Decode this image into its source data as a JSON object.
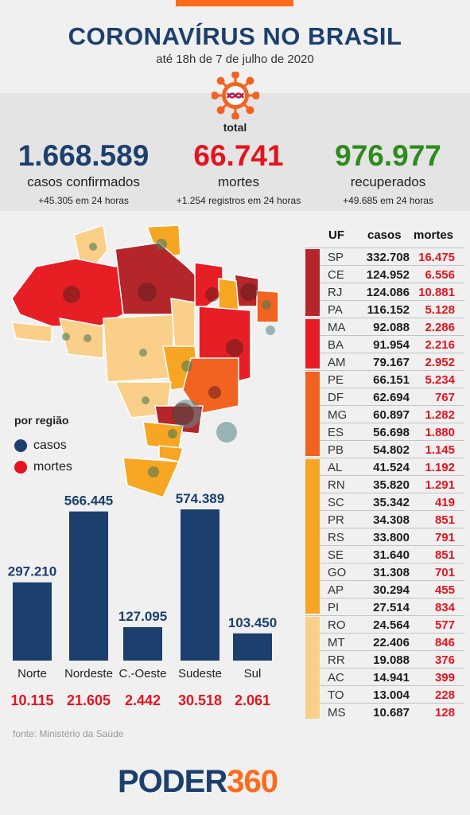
{
  "header": {
    "title": "CORONAVÍRUS NO BRASIL",
    "subtitle": "até 18h de 7 de julho de 2020",
    "total_label": "total"
  },
  "stats": [
    {
      "value": "1.668.589",
      "label": "casos confirmados",
      "sub": "+45.305 em 24 horas",
      "color": "#1c3f6e"
    },
    {
      "value": "66.741",
      "label": "mortes",
      "sub": "+1.254 registros em 24 horas",
      "color": "#e4141e"
    },
    {
      "value": "976.977",
      "label": "recuperados",
      "sub": "+49.685 em 24 horas",
      "color": "#2e8b1e"
    }
  ],
  "legend": {
    "title": "por região",
    "items": [
      {
        "label": "casos",
        "color": "#1c3f6e"
      },
      {
        "label": "mortes",
        "color": "#e4141e"
      }
    ]
  },
  "table": {
    "headers": {
      "uf": "UF",
      "casos": "casos",
      "mortes": "mortes"
    },
    "rows": [
      {
        "uf": "SP",
        "casos": "332.708",
        "mortes": "16.475"
      },
      {
        "uf": "CE",
        "casos": "124.952",
        "mortes": "6.556"
      },
      {
        "uf": "RJ",
        "casos": "124.086",
        "mortes": "10.881"
      },
      {
        "uf": "PA",
        "casos": "116.152",
        "mortes": "5.128"
      },
      {
        "uf": "MA",
        "casos": "92.088",
        "mortes": "2.286"
      },
      {
        "uf": "BA",
        "casos": "91.954",
        "mortes": "2.216"
      },
      {
        "uf": "AM",
        "casos": "79.167",
        "mortes": "2.952"
      },
      {
        "uf": "PE",
        "casos": "66.151",
        "mortes": "5.234"
      },
      {
        "uf": "DF",
        "casos": "62.694",
        "mortes": "767"
      },
      {
        "uf": "MG",
        "casos": "60.897",
        "mortes": "1.282"
      },
      {
        "uf": "ES",
        "casos": "56.698",
        "mortes": "1.880"
      },
      {
        "uf": "PB",
        "casos": "54.802",
        "mortes": "1.145"
      },
      {
        "uf": "AL",
        "casos": "41.524",
        "mortes": "1.192"
      },
      {
        "uf": "RN",
        "casos": "35.820",
        "mortes": "1.291"
      },
      {
        "uf": "SC",
        "casos": "35.342",
        "mortes": "419"
      },
      {
        "uf": "PR",
        "casos": "34.308",
        "mortes": "851"
      },
      {
        "uf": "RS",
        "casos": "33.800",
        "mortes": "791"
      },
      {
        "uf": "SE",
        "casos": "31.640",
        "mortes": "851"
      },
      {
        "uf": "GO",
        "casos": "31.308",
        "mortes": "701"
      },
      {
        "uf": "AP",
        "casos": "30.294",
        "mortes": "455"
      },
      {
        "uf": "PI",
        "casos": "27.514",
        "mortes": "834"
      },
      {
        "uf": "RO",
        "casos": "24.564",
        "mortes": "577"
      },
      {
        "uf": "MT",
        "casos": "22.406",
        "mortes": "846"
      },
      {
        "uf": "RR",
        "casos": "19.088",
        "mortes": "376"
      },
      {
        "uf": "AC",
        "casos": "14.941",
        "mortes": "399"
      },
      {
        "uf": "TO",
        "casos": "13.004",
        "mortes": "228"
      },
      {
        "uf": "MS",
        "casos": "10.687",
        "mortes": "128"
      }
    ],
    "tier_colors": [
      "#b5262b",
      "#e81e25",
      "#f26321",
      "#f6a623",
      "#f9cf8a"
    ],
    "tiers": [
      4,
      3,
      5,
      9,
      6
    ]
  },
  "chart_data": {
    "type": "bar",
    "categories": [
      "Norte",
      "Nordeste",
      "C.-Oeste",
      "Sudeste",
      "Sul"
    ],
    "series": [
      {
        "name": "casos",
        "values": [
          297210,
          566445,
          127095,
          574389,
          103450
        ]
      },
      {
        "name": "mortes",
        "values": [
          10115,
          21605,
          2442,
          30518,
          2061
        ]
      }
    ],
    "value_labels": [
      "297.210",
      "566.445",
      "127.095",
      "574.389",
      "103.450"
    ],
    "death_labels": [
      "10.115",
      "21.605",
      "2.442",
      "30.518",
      "2.061"
    ],
    "bar_color": "#1c3f6e",
    "death_color": "#e4141e"
  },
  "footer": {
    "source": "fonte: Ministério da Saúde",
    "logo_a": "PODER",
    "logo_b": "360"
  }
}
